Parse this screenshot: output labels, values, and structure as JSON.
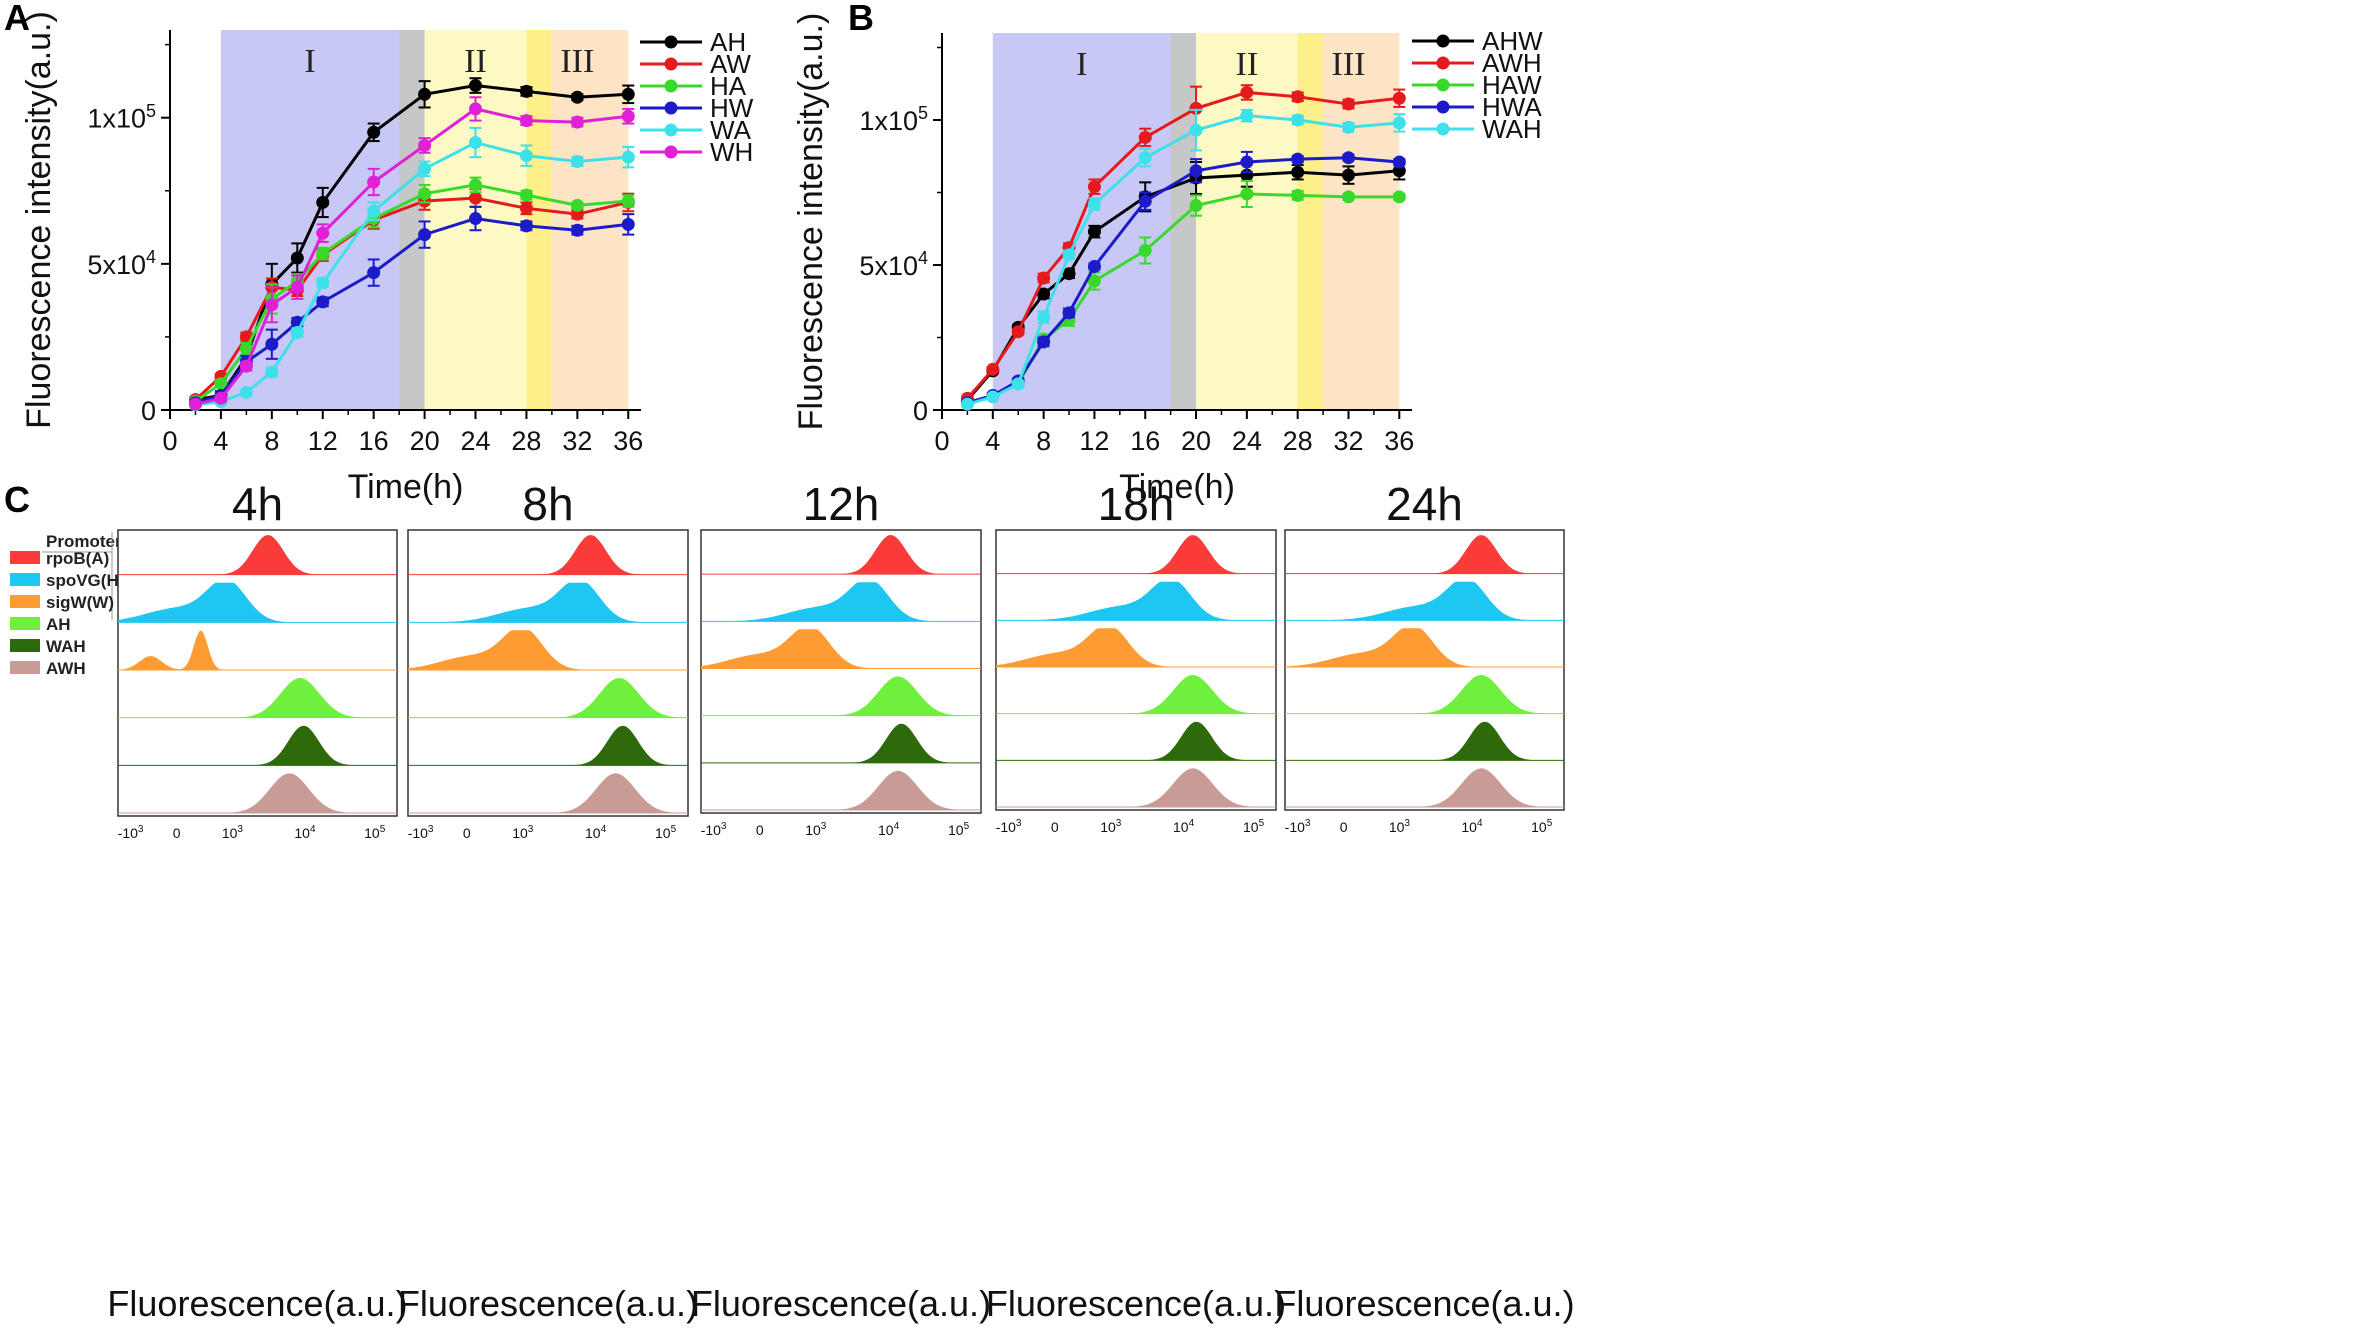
{
  "panel_labels": {
    "a": "A",
    "b": "B",
    "c": "C"
  },
  "regions": [
    "I",
    "II",
    "III"
  ],
  "region_spans": [
    [
      4,
      20
    ],
    [
      18,
      20
    ],
    [
      20,
      30
    ],
    [
      28,
      30
    ],
    [
      30,
      36
    ]
  ],
  "region_colors": [
    "#c8c8f6",
    "#c6c7c8",
    "#fdf9c4",
    "#fdf08a",
    "#fde4c4"
  ],
  "chart_data": [
    {
      "type": "line",
      "panel": "A",
      "xlabel": "Time(h)",
      "ylabel": "Fluorescence intensity(a.u.)",
      "xlim": [
        0,
        37
      ],
      "ylim": [
        0,
        130000
      ],
      "xticks": [
        "0",
        "4",
        "8",
        "12",
        "16",
        "20",
        "24",
        "28",
        "32",
        "36"
      ],
      "ytick_values": [
        0,
        50000,
        100000
      ],
      "ytick_labels": [
        "0",
        "5x10",
        "1x10"
      ],
      "ytick_exps": [
        "",
        "4",
        "5"
      ],
      "x": [
        2,
        4,
        6,
        8,
        10,
        12,
        16,
        20,
        24,
        28,
        32,
        36
      ],
      "series": [
        {
          "name": "AH",
          "color": "#000000",
          "values": [
            3500,
            5000,
            18000,
            43000,
            52000,
            71000,
            95000,
            108000,
            111000,
            109000,
            107000,
            108000
          ],
          "errors": [
            800,
            1500,
            3000,
            7000,
            5000,
            5000,
            3000,
            4500,
            2500,
            1500,
            1000,
            3000
          ]
        },
        {
          "name": "AW",
          "color": "#e41a1c",
          "values": [
            3500,
            11500,
            25000,
            42000,
            41000,
            53000,
            65000,
            71500,
            72500,
            69000,
            67000,
            71000
          ],
          "errors": [
            800,
            800,
            1500,
            3000,
            2000,
            2000,
            3000,
            3000,
            3000,
            2000,
            1500,
            3000
          ]
        },
        {
          "name": "HA",
          "color": "#39d92b",
          "values": [
            3000,
            9000,
            21000,
            38000,
            44000,
            53500,
            65500,
            74000,
            77000,
            73500,
            70000,
            71500
          ],
          "errors": [
            800,
            1000,
            2000,
            5000,
            2500,
            2000,
            3000,
            3000,
            2500,
            1500,
            1000,
            2000
          ]
        },
        {
          "name": "HW",
          "color": "#1b1bc9",
          "values": [
            2500,
            5000,
            16500,
            22500,
            30000,
            37000,
            47000,
            60000,
            65500,
            63000,
            61500,
            63500
          ],
          "errors": [
            800,
            1500,
            2000,
            5000,
            1500,
            1500,
            4500,
            4500,
            4000,
            1500,
            1500,
            3500
          ]
        },
        {
          "name": "WA",
          "color": "#3ee0ea",
          "values": [
            1800,
            2800,
            6000,
            13000,
            26500,
            43500,
            68000,
            82500,
            91500,
            87000,
            85000,
            86500
          ],
          "errors": [
            500,
            500,
            800,
            1500,
            1500,
            1500,
            3000,
            2500,
            5000,
            3500,
            1500,
            3500
          ]
        },
        {
          "name": "WH",
          "color": "#e020d6",
          "values": [
            2000,
            4000,
            15000,
            36000,
            42000,
            60500,
            78000,
            90500,
            103000,
            99000,
            98500,
            100500
          ],
          "errors": [
            600,
            1000,
            1500,
            6000,
            4000,
            3000,
            4500,
            2500,
            4000,
            1500,
            1500,
            2500
          ]
        }
      ]
    },
    {
      "type": "line",
      "panel": "B",
      "xlabel": "Time(h)",
      "ylabel": "Fluorescence intensity(a.u.)",
      "xlim": [
        0,
        37
      ],
      "ylim": [
        0,
        130000
      ],
      "xticks": [
        "0",
        "4",
        "8",
        "12",
        "16",
        "20",
        "24",
        "28",
        "32",
        "36"
      ],
      "ytick_values": [
        0,
        50000,
        100000
      ],
      "ytick_labels": [
        "0",
        "5x10",
        "1x10"
      ],
      "ytick_exps": [
        "",
        "4",
        "5"
      ],
      "x": [
        2,
        4,
        6,
        8,
        10,
        12,
        16,
        20,
        24,
        28,
        32,
        36
      ],
      "series": [
        {
          "name": "AHW",
          "color": "#000000",
          "values": [
            3500,
            13500,
            28500,
            40000,
            47000,
            61500,
            73500,
            80000,
            81000,
            82000,
            81000,
            82500
          ],
          "errors": [
            500,
            800,
            1000,
            1500,
            1500,
            2000,
            5000,
            5500,
            4000,
            2500,
            3000,
            3000
          ]
        },
        {
          "name": "AWH",
          "color": "#e41a1c",
          "values": [
            4000,
            14000,
            27000,
            45500,
            56000,
            77000,
            94000,
            104000,
            109500,
            108000,
            105500,
            107500
          ],
          "errors": [
            500,
            800,
            1000,
            1500,
            1500,
            2500,
            3000,
            7500,
            2500,
            1500,
            1500,
            3000
          ]
        },
        {
          "name": "HAW",
          "color": "#39d92b",
          "values": [
            2500,
            5000,
            9000,
            24500,
            31000,
            44500,
            55000,
            70500,
            74500,
            74000,
            73500,
            73500
          ],
          "errors": [
            500,
            800,
            1000,
            1500,
            2000,
            3000,
            4500,
            3500,
            4500,
            1500,
            1000,
            1000
          ]
        },
        {
          "name": "HWA",
          "color": "#1b1bc9",
          "values": [
            2500,
            5000,
            10000,
            23500,
            33500,
            49500,
            72000,
            82500,
            85500,
            86500,
            87000,
            85500
          ],
          "errors": [
            500,
            800,
            1000,
            1500,
            1500,
            1000,
            3000,
            4000,
            3500,
            1000,
            1000,
            1000
          ]
        },
        {
          "name": "WAH",
          "color": "#3ee0ea",
          "values": [
            2000,
            4500,
            9000,
            32000,
            53500,
            71000,
            87000,
            96500,
            101500,
            100000,
            97500,
            99000
          ],
          "errors": [
            500,
            800,
            1000,
            2000,
            1500,
            2000,
            3000,
            7000,
            2000,
            1500,
            1500,
            3000
          ]
        }
      ]
    },
    {
      "type": "histogram-overlay",
      "panel": "C",
      "xlabel": "Fluorescence(a.u.)",
      "xticks": [
        "-10",
        "0",
        "10",
        "10",
        "10"
      ],
      "xtick_exps": [
        "3",
        "",
        "3",
        "4",
        "5"
      ],
      "legend_title": "Promoter",
      "promoters": [
        {
          "name": "rpoB(A)",
          "color": "#fb3a3a"
        },
        {
          "name": "spoVG(H)",
          "color": "#1ec6f2"
        },
        {
          "name": "sigW(W)",
          "color": "#ff9b33"
        },
        {
          "name": "AH",
          "color": "#6ff03c"
        },
        {
          "name": "WAH",
          "color": "#2d6a0c"
        },
        {
          "name": "AWH",
          "color": "#c99b97"
        }
      ],
      "timepoints": [
        "4h",
        "8h",
        "12h",
        "18h",
        "24h"
      ],
      "peak_log10": [
        [
          3.5,
          2.7,
          1.3,
          3.95,
          4.0,
          3.8
        ],
        [
          3.95,
          3.8,
          3.0,
          4.35,
          4.4,
          4.3
        ],
        [
          4.05,
          3.75,
          2.7,
          4.15,
          4.2,
          4.15
        ],
        [
          4.15,
          3.85,
          2.9,
          4.15,
          4.2,
          4.15
        ],
        [
          4.15,
          3.95,
          3.2,
          4.15,
          4.2,
          4.15
        ]
      ]
    }
  ]
}
